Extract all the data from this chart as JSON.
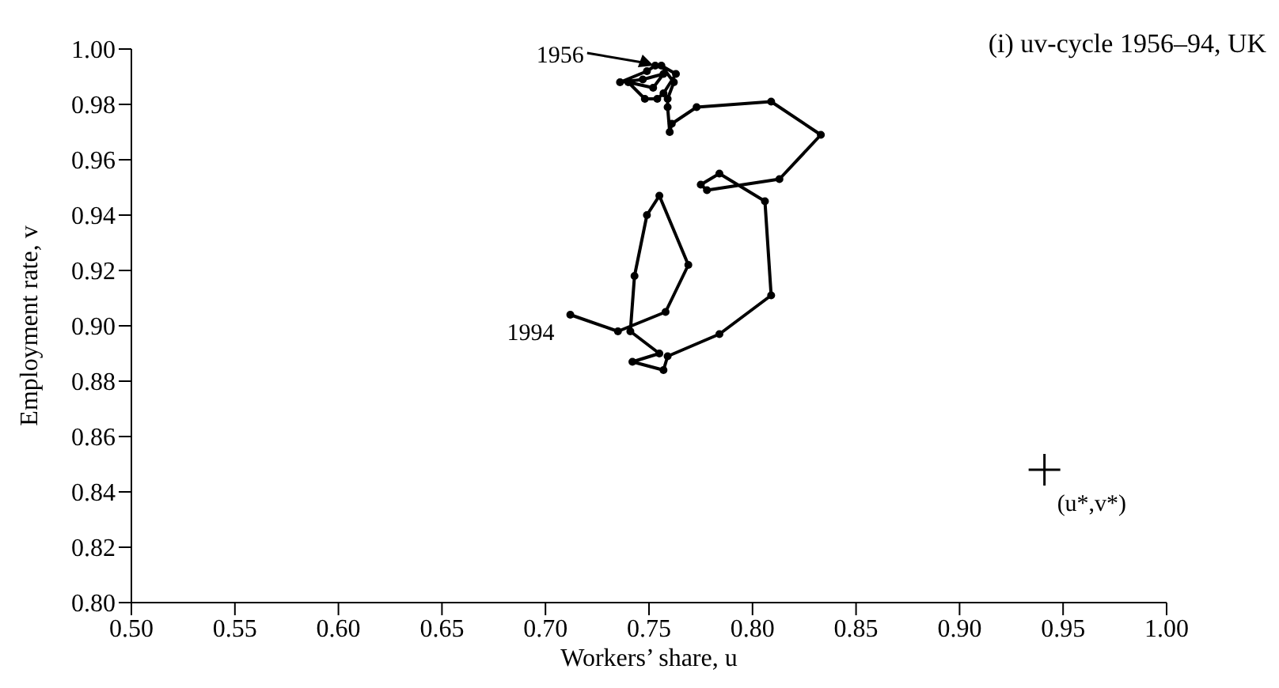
{
  "chart_data": {
    "type": "line",
    "title": "(i) uv-cycle 1956–94, UK",
    "xlabel": "Workers’ share, u",
    "ylabel": "Employment rate, v",
    "xlim": [
      0.5,
      1.0
    ],
    "ylim": [
      0.8,
      1.0
    ],
    "xticks": [
      {
        "value": 0.5,
        "label": "0.50"
      },
      {
        "value": 0.55,
        "label": "0.55"
      },
      {
        "value": 0.6,
        "label": "0.60"
      },
      {
        "value": 0.65,
        "label": "0.65"
      },
      {
        "value": 0.7,
        "label": "0.70"
      },
      {
        "value": 0.75,
        "label": "0.75"
      },
      {
        "value": 0.8,
        "label": "0.80"
      },
      {
        "value": 0.85,
        "label": "0.85"
      },
      {
        "value": 0.9,
        "label": "0.90"
      },
      {
        "value": 0.95,
        "label": "0.95"
      },
      {
        "value": 1.0,
        "label": "1.00"
      }
    ],
    "yticks": [
      {
        "value": 0.8,
        "label": "0.80"
      },
      {
        "value": 0.82,
        "label": "0.82"
      },
      {
        "value": 0.84,
        "label": "0.84"
      },
      {
        "value": 0.86,
        "label": "0.86"
      },
      {
        "value": 0.88,
        "label": "0.88"
      },
      {
        "value": 0.9,
        "label": "0.90"
      },
      {
        "value": 0.92,
        "label": "0.92"
      },
      {
        "value": 0.94,
        "label": "0.94"
      },
      {
        "value": 0.96,
        "label": "0.96"
      },
      {
        "value": 0.98,
        "label": "0.98"
      },
      {
        "value": 1.0,
        "label": "1.00"
      }
    ],
    "grid": false,
    "marker": "circle",
    "line_style": "solid",
    "series": [
      {
        "color": "#000000",
        "x": [
          0.753,
          0.749,
          0.736,
          0.747,
          0.757,
          0.752,
          0.74,
          0.748,
          0.754,
          0.757,
          0.763,
          0.756,
          0.762,
          0.759,
          0.759,
          0.76,
          0.761,
          0.773,
          0.809,
          0.833,
          0.813,
          0.778,
          0.775,
          0.784,
          0.806,
          0.809,
          0.784,
          0.759,
          0.757,
          0.742,
          0.755,
          0.741,
          0.743,
          0.749,
          0.755,
          0.769,
          0.758,
          0.735,
          0.712
        ],
        "values": [
          0.994,
          0.992,
          0.988,
          0.989,
          0.991,
          0.986,
          0.988,
          0.982,
          0.982,
          0.984,
          0.991,
          0.994,
          0.988,
          0.982,
          0.979,
          0.97,
          0.973,
          0.979,
          0.981,
          0.969,
          0.953,
          0.949,
          0.951,
          0.955,
          0.945,
          0.911,
          0.897,
          0.889,
          0.884,
          0.887,
          0.89,
          0.898,
          0.918,
          0.94,
          0.947,
          0.922,
          0.905,
          0.898,
          0.904
        ]
      },
      {
        "type": "scatter",
        "color": "#000000",
        "marker": "cross",
        "x": [
          0.941
        ],
        "values": [
          0.848
        ]
      }
    ],
    "annotations": [
      {
        "text": "1956",
        "x": 0.753,
        "y": 0.994
      },
      {
        "text": "1994",
        "x": 0.712,
        "y": 0.904
      },
      {
        "text": "(u*,v*)",
        "x": 0.941,
        "y": 0.848
      }
    ]
  }
}
